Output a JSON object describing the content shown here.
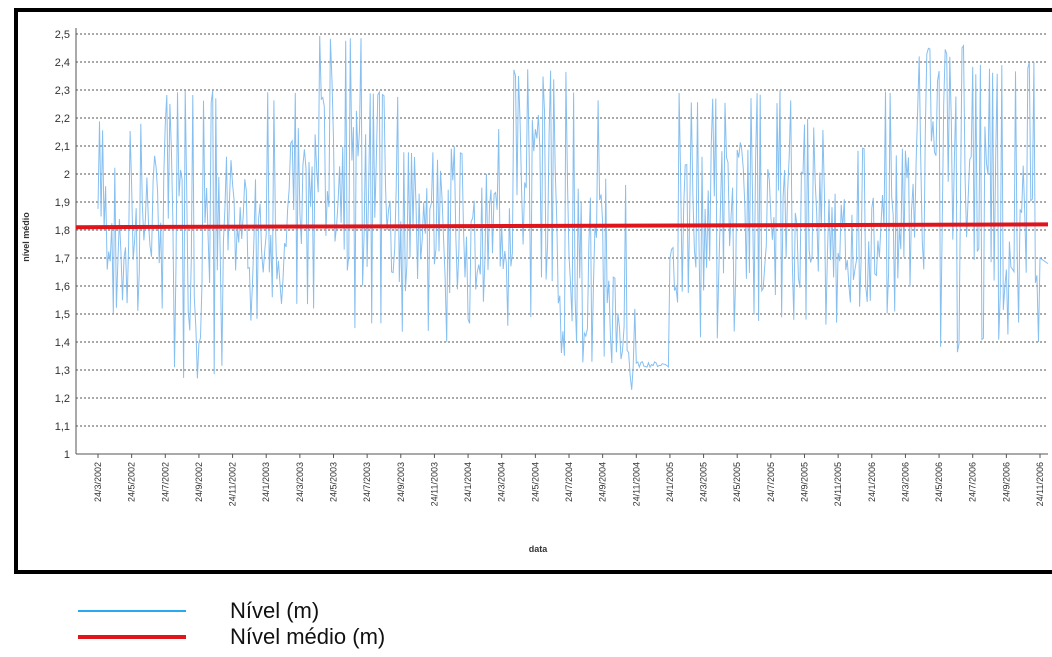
{
  "chart_data": {
    "type": "line",
    "title": "",
    "xlabel": "data",
    "ylabel": "nível médio",
    "ylim": [
      1,
      2.5
    ],
    "y_ticks": [
      "1",
      "1,1",
      "1,2",
      "1,3",
      "1,4",
      "1,5",
      "1,6",
      "1,7",
      "1,8",
      "1,9",
      "2",
      "2,1",
      "2,2",
      "2,3",
      "2,4",
      "2,5"
    ],
    "x_ticks": [
      "24/3/2002",
      "24/5/2002",
      "24/7/2002",
      "24/9/2002",
      "24/11/2002",
      "24/1/2003",
      "24/3/2003",
      "24/5/2003",
      "24/7/2003",
      "24/9/2003",
      "24/11/2003",
      "24/1/2004",
      "24/3/2004",
      "24/5/2004",
      "24/7/2004",
      "24/9/2004",
      "24/11/2004",
      "24/1/2005",
      "24/3/2005",
      "24/5/2005",
      "24/7/2005",
      "24/9/2005",
      "24/11/2005",
      "24/1/2006",
      "24/3/2006",
      "24/5/2006",
      "24/7/2006",
      "24/9/2006",
      "24/11/2006"
    ],
    "grid": "horizontal-dashed",
    "series": [
      {
        "name": "Nível (m)",
        "color": "#7ab8ee",
        "x": [
          "24/3/2002",
          "24/5/2002",
          "24/7/2002",
          "24/9/2002",
          "24/11/2002",
          "24/1/2003",
          "24/3/2003",
          "24/5/2003",
          "24/7/2003",
          "24/9/2003",
          "24/11/2003",
          "24/1/2004",
          "24/3/2004",
          "24/5/2004",
          "24/7/2004",
          "24/9/2004",
          "24/11/2004",
          "24/1/2005",
          "24/3/2005",
          "24/5/2005",
          "24/7/2005",
          "24/9/2005",
          "24/11/2005",
          "24/1/2006",
          "24/3/2006",
          "24/5/2006",
          "24/7/2006",
          "24/9/2006",
          "24/11/2006"
        ],
        "values": [
          1.85,
          1.8,
          1.9,
          1.65,
          1.8,
          1.75,
          1.95,
          2.05,
          1.85,
          1.75,
          1.85,
          1.7,
          1.85,
          2.0,
          1.7,
          1.65,
          1.32,
          1.7,
          1.85,
          1.9,
          1.8,
          1.85,
          1.8,
          1.75,
          1.9,
          2.05,
          1.95,
          1.8,
          1.7
        ],
        "max": [
          2.1,
          2.2,
          2.2,
          2.3,
          2.0,
          1.9,
          2.3,
          2.5,
          2.3,
          2.1,
          2.1,
          2.0,
          2.2,
          2.38,
          2.3,
          2.0,
          1.32,
          2.1,
          2.3,
          2.28,
          2.3,
          2.2,
          1.9,
          2.1,
          2.3,
          2.46,
          2.4,
          2.4,
          2.0
        ],
        "min": [
          1.5,
          1.55,
          1.5,
          1.27,
          1.45,
          1.6,
          1.5,
          1.55,
          1.45,
          1.55,
          1.4,
          1.45,
          1.5,
          1.45,
          1.32,
          1.35,
          1.31,
          1.5,
          1.4,
          1.45,
          1.5,
          1.45,
          1.6,
          1.5,
          1.6,
          1.35,
          1.5,
          1.4,
          1.38
        ]
      },
      {
        "name": "Nível médio (m)",
        "color": "#e0141b",
        "x": [
          "24/3/2002",
          "24/11/2006"
        ],
        "values": [
          1.81,
          1.82
        ]
      }
    ],
    "legend": {
      "position": "bottom-left",
      "items": [
        {
          "label": "Nível (m)",
          "color": "#29a9f0"
        },
        {
          "label": "Nível médio (m)",
          "color": "#e0141b"
        }
      ]
    }
  }
}
